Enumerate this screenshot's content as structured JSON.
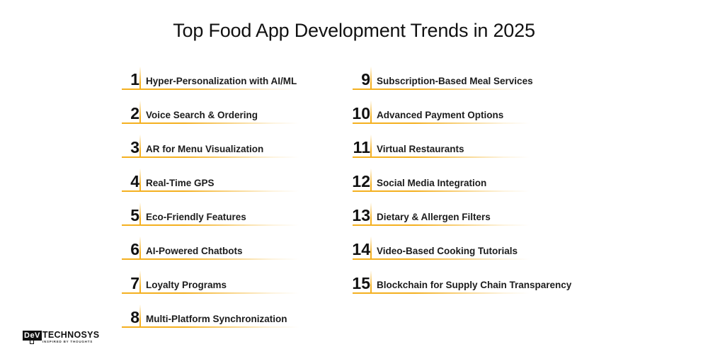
{
  "title": "Top Food App Development Trends in 2025",
  "accent_color": "#f4b020",
  "left_items": [
    {
      "num": "1",
      "label": "Hyper-Personalization with AI/ML"
    },
    {
      "num": "2",
      "label": "Voice Search & Ordering"
    },
    {
      "num": "3",
      "label": "AR for Menu Visualization"
    },
    {
      "num": "4",
      "label": "Real-Time GPS"
    },
    {
      "num": "5",
      "label": "Eco-Friendly Features"
    },
    {
      "num": "6",
      "label": "AI-Powered Chatbots"
    },
    {
      "num": "7",
      "label": "Loyalty Programs"
    },
    {
      "num": "8",
      "label": "Multi-Platform Synchronization"
    }
  ],
  "right_items": [
    {
      "num": "9",
      "label": "Subscription-Based Meal Services"
    },
    {
      "num": "10",
      "label": "Advanced Payment Options"
    },
    {
      "num": "11",
      "label": "Virtual Restaurants"
    },
    {
      "num": "12",
      "label": "Social Media Integration"
    },
    {
      "num": "13",
      "label": "Dietary & Allergen Filters"
    },
    {
      "num": "14",
      "label": "Video-Based Cooking Tutorials"
    },
    {
      "num": "15",
      "label": "Blockchain for Supply Chain Transparency"
    }
  ],
  "logo": {
    "mark": "DeV",
    "name": "TECHNOSYS",
    "tagline": "INSPIRED BY THOUGHTS"
  }
}
